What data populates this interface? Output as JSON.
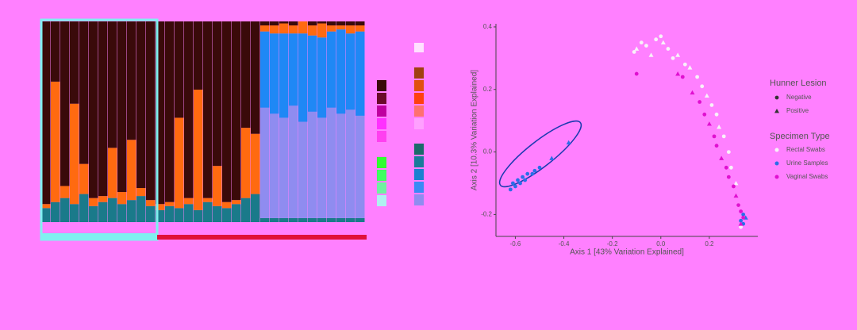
{
  "chart_data": [
    {
      "type": "stacked-bar",
      "ylim": [
        0,
        100
      ],
      "series": [
        {
          "color": "#1a7a8a",
          "values": [
            7,
            10,
            12,
            9,
            14,
            8,
            10,
            12,
            9,
            11,
            13,
            8,
            6,
            8,
            7,
            9,
            6,
            10,
            8,
            7,
            9,
            12,
            14,
            2,
            2,
            2,
            2,
            2,
            2,
            2,
            2,
            2,
            2,
            2
          ]
        },
        {
          "color": "#8f8cf0",
          "values": [
            0,
            0,
            0,
            0,
            0,
            0,
            0,
            0,
            0,
            0,
            0,
            0,
            0,
            0,
            0,
            0,
            0,
            0,
            0,
            0,
            0,
            0,
            0,
            55,
            52,
            50,
            56,
            48,
            53,
            50,
            55,
            52,
            54,
            51
          ]
        },
        {
          "color": "#1f88f5",
          "values": [
            0,
            0,
            0,
            0,
            0,
            0,
            0,
            0,
            0,
            0,
            0,
            0,
            0,
            0,
            0,
            0,
            0,
            0,
            0,
            0,
            0,
            0,
            0,
            38,
            40,
            42,
            36,
            44,
            38,
            40,
            38,
            42,
            38,
            42
          ]
        },
        {
          "color": "#ff6a10",
          "values": [
            2,
            60,
            6,
            50,
            15,
            4,
            3,
            25,
            6,
            30,
            4,
            3,
            3,
            2,
            45,
            3,
            60,
            2,
            20,
            3,
            2,
            35,
            30,
            3,
            4,
            5,
            4,
            6,
            5,
            7,
            3,
            2,
            4,
            3
          ]
        },
        {
          "color": "#3a0a0a",
          "values": [
            91,
            30,
            82,
            41,
            71,
            88,
            87,
            63,
            85,
            59,
            83,
            89,
            91,
            90,
            48,
            88,
            34,
            88,
            72,
            90,
            89,
            53,
            56,
            2,
            2,
            1,
            2,
            0,
            2,
            1,
            2,
            2,
            2,
            2
          ]
        }
      ]
    },
    {
      "type": "scatter",
      "x_label": "Axis 1 [43% Variation Explained]",
      "y_label": "Axis 2 [10.3% Variation Explained]",
      "xlim": [
        -0.68,
        0.4
      ],
      "ylim": [
        -0.27,
        0.41
      ],
      "xticks": [
        -0.6,
        -0.4,
        -0.2,
        {
          "value": 0,
          "label": "0.0"
        },
        0.2
      ],
      "yticks": [
        -0.2,
        {
          "value": 0,
          "label": "0.0"
        },
        0.2,
        0.4
      ],
      "shape_legend": {
        "title": "Hunner Lesion",
        "entries": [
          "Negative",
          "Positive"
        ]
      },
      "color_legend_title": "Specimen Type",
      "series": [
        {
          "name": "Rectal Swabs",
          "color": "#f8f0f8",
          "x": [
            -0.11,
            -0.1,
            -0.08,
            -0.06,
            -0.04,
            -0.02,
            0.0,
            0.01,
            0.03,
            0.05,
            0.07,
            0.1,
            0.12,
            0.15,
            0.17,
            0.19,
            0.21,
            0.23,
            0.24,
            0.26,
            0.28,
            0.29,
            0.31,
            0.32,
            0.33
          ],
          "y": [
            0.32,
            0.33,
            0.35,
            0.34,
            0.31,
            0.36,
            0.37,
            0.35,
            0.33,
            0.3,
            0.31,
            0.28,
            0.27,
            0.24,
            0.21,
            0.18,
            0.15,
            0.12,
            0.08,
            0.05,
            0.0,
            -0.05,
            -0.1,
            -0.17,
            -0.24
          ],
          "lesion": [
            "Negative",
            "Positive",
            "Negative",
            "Negative",
            "Positive",
            "Negative",
            "Negative",
            "Positive",
            "Negative",
            "Negative",
            "Positive",
            "Negative",
            "Positive",
            "Negative",
            "Negative",
            "Positive",
            "Negative",
            "Negative",
            "Positive",
            "Negative",
            "Negative",
            "Negative",
            "Positive",
            "Negative",
            "Negative"
          ]
        },
        {
          "name": "Urine Samples",
          "color": "#2a6ee8",
          "x": [
            -0.62,
            -0.61,
            -0.6,
            -0.59,
            -0.58,
            -0.57,
            -0.56,
            -0.55,
            -0.53,
            -0.52,
            -0.5,
            -0.45,
            -0.38,
            0.33,
            0.34,
            0.35,
            0.34
          ],
          "y": [
            -0.12,
            -0.1,
            -0.11,
            -0.09,
            -0.1,
            -0.08,
            -0.09,
            -0.07,
            -0.07,
            -0.06,
            -0.05,
            -0.02,
            0.03,
            -0.22,
            -0.23,
            -0.21,
            -0.2
          ],
          "lesion": [
            "Negative",
            "Negative",
            "Negative",
            "Negative",
            "Negative",
            "Negative",
            "Negative",
            "Negative",
            "Negative",
            "Negative",
            "Negative",
            "Positive",
            "Positive",
            "Negative",
            "Negative",
            "Positive",
            "Negative"
          ]
        },
        {
          "name": "Vaginal Swabs",
          "color": "#e010d0",
          "x": [
            -0.1,
            0.07,
            0.09,
            0.13,
            0.16,
            0.18,
            0.2,
            0.22,
            0.23,
            0.25,
            0.27,
            0.28,
            0.3,
            0.31,
            0.32,
            0.33,
            0.34,
            0.33
          ],
          "y": [
            0.25,
            0.25,
            0.24,
            0.19,
            0.16,
            0.12,
            0.09,
            0.05,
            0.02,
            -0.02,
            -0.05,
            -0.08,
            -0.11,
            -0.14,
            -0.17,
            -0.19,
            -0.21,
            -0.23
          ],
          "lesion": [
            "Negative",
            "Positive",
            "Negative",
            "Positive",
            "Negative",
            "Negative",
            "Positive",
            "Negative",
            "Negative",
            "Positive",
            "Negative",
            "Negative",
            "Negative",
            "Positive",
            "Negative",
            "Negative",
            "Negative",
            "Positive"
          ]
        }
      ]
    }
  ]
}
